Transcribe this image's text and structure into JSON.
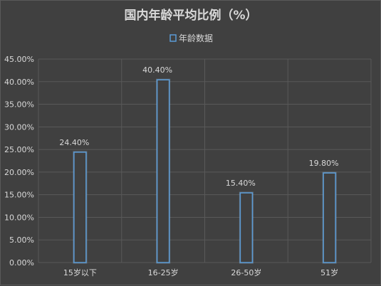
{
  "chart_data": {
    "type": "bar",
    "title": "国内年龄平均比例（%）",
    "categories": [
      "15岁以下",
      "16-25岁",
      "26-50岁",
      "51岁"
    ],
    "series": [
      {
        "name": "年龄数据",
        "values": [
          24.4,
          40.4,
          15.4,
          19.8
        ],
        "labels": [
          "24.40%",
          "40.40%",
          "15.40%",
          "19.80%"
        ]
      }
    ],
    "ylim": [
      0,
      45
    ],
    "y_ticks": [
      "0.00%",
      "5.00%",
      "10.00%",
      "15.00%",
      "20.00%",
      "25.00%",
      "30.00%",
      "35.00%",
      "40.00%",
      "45.00%"
    ],
    "y_tick_values": [
      0,
      5,
      10,
      15,
      20,
      25,
      30,
      35,
      40,
      45
    ],
    "grid": true,
    "legend_position": "top"
  },
  "colors": {
    "background": "#404040",
    "bar_fill": "#404040",
    "bar_stroke": "#5b9bd5",
    "bar_glow": "#9dc3e6",
    "grid": "#595959",
    "text": "#d9d9d9"
  }
}
